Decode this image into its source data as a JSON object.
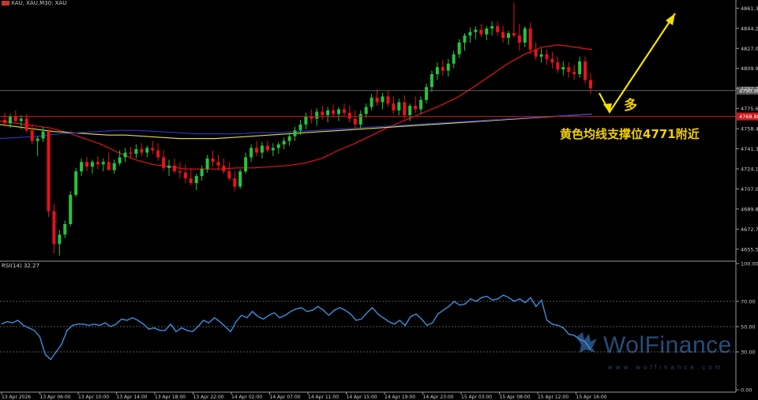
{
  "window": {
    "symbol_title": "XAU, XAU,M30: XAU",
    "rsi_title": "RSI(14) 32.27"
  },
  "annotations": {
    "support_text": "黄色均线支撑位4771附近",
    "long_label": "多"
  },
  "watermark": {
    "brand": "WolFinance",
    "url": "www.wolfinance.com"
  },
  "colors": {
    "background": "#000000",
    "bull": "#26c43c",
    "bear": "#e8131b",
    "ma_red": "#e8131b",
    "ma_yellow": "#e6d94a",
    "ma_blue": "#2a38c8",
    "rsi_line": "#3d8fe0",
    "arrow": "#f2e200",
    "level_line": "#d01818",
    "annotation": "#f2d000"
  },
  "chart_data": [
    {
      "type": "candlestick",
      "timeframe": "M30",
      "yaxis_labels": [
        "4861.35",
        "4844.20",
        "4827.05",
        "4809.90",
        "4792.75",
        "4775.60",
        "4758.45",
        "4741.30",
        "4724.15",
        "4707.00",
        "4689.85",
        "4672.70",
        "4655.55"
      ],
      "ylim": [
        4646,
        4867
      ],
      "current_price_label": "4790.98",
      "horizontal_level_label": "4768.88",
      "xaxis_labels": [
        "13 Apr 2026",
        "13 Apr 06:00",
        "13 Apr 10:00",
        "13 Apr 14:00",
        "13 Apr 18:00",
        "13 Apr 22:00",
        "14 Apr 02:00",
        "14 Apr 07:00",
        "14 Apr 11:00",
        "14 Apr 15:00",
        "14 Apr 19:00",
        "14 Apr 23:00",
        "15 Apr 03:00",
        "15 Apr 08:00",
        "15 Apr 12:00",
        "15 Apr 16:00"
      ],
      "candles_ohlc": [
        [
          4766,
          4772,
          4760,
          4763
        ],
        [
          4763,
          4771,
          4759,
          4769
        ],
        [
          4769,
          4774,
          4764,
          4765
        ],
        [
          4765,
          4770,
          4758,
          4767
        ],
        [
          4767,
          4771,
          4755,
          4757
        ],
        [
          4757,
          4762,
          4745,
          4748
        ],
        [
          4748,
          4752,
          4735,
          4750
        ],
        [
          4750,
          4760,
          4747,
          4756
        ],
        [
          4756,
          4758,
          4683,
          4688
        ],
        [
          4688,
          4694,
          4652,
          4660
        ],
        [
          4660,
          4672,
          4650,
          4668
        ],
        [
          4668,
          4680,
          4665,
          4677
        ],
        [
          4677,
          4705,
          4675,
          4702
        ],
        [
          4702,
          4725,
          4700,
          4722
        ],
        [
          4722,
          4733,
          4718,
          4730
        ],
        [
          4730,
          4734,
          4722,
          4726
        ],
        [
          4726,
          4732,
          4720,
          4730
        ],
        [
          4730,
          4735,
          4724,
          4728
        ],
        [
          4728,
          4733,
          4722,
          4730
        ],
        [
          4730,
          4738,
          4725,
          4723
        ],
        [
          4723,
          4732,
          4720,
          4729
        ],
        [
          4729,
          4740,
          4727,
          4734
        ],
        [
          4734,
          4742,
          4730,
          4738
        ],
        [
          4738,
          4743,
          4733,
          4737
        ],
        [
          4737,
          4745,
          4733,
          4741
        ],
        [
          4741,
          4746,
          4735,
          4738
        ],
        [
          4738,
          4744,
          4734,
          4742
        ],
        [
          4742,
          4748,
          4737,
          4740
        ],
        [
          4740,
          4746,
          4731,
          4734
        ],
        [
          4734,
          4740,
          4722,
          4725
        ],
        [
          4725,
          4732,
          4718,
          4727
        ],
        [
          4727,
          4733,
          4720,
          4722
        ],
        [
          4722,
          4730,
          4716,
          4721
        ],
        [
          4721,
          4728,
          4712,
          4716
        ],
        [
          4716,
          4725,
          4710,
          4712
        ],
        [
          4712,
          4720,
          4706,
          4718
        ],
        [
          4718,
          4727,
          4714,
          4724
        ],
        [
          4724,
          4736,
          4721,
          4733
        ],
        [
          4733,
          4740,
          4726,
          4730
        ],
        [
          4730,
          4736,
          4723,
          4727
        ],
        [
          4727,
          4733,
          4720,
          4722
        ],
        [
          4722,
          4730,
          4714,
          4716
        ],
        [
          4716,
          4722,
          4705,
          4709
        ],
        [
          4709,
          4724,
          4707,
          4722
        ],
        [
          4722,
          4738,
          4720,
          4734
        ],
        [
          4734,
          4745,
          4730,
          4742
        ],
        [
          4742,
          4748,
          4735,
          4738
        ],
        [
          4738,
          4747,
          4733,
          4744
        ],
        [
          4744,
          4748,
          4738,
          4740
        ],
        [
          4740,
          4746,
          4735,
          4742
        ],
        [
          4742,
          4747,
          4737,
          4745
        ],
        [
          4745,
          4751,
          4741,
          4748
        ],
        [
          4748,
          4755,
          4744,
          4752
        ],
        [
          4752,
          4760,
          4748,
          4757
        ],
        [
          4757,
          4766,
          4753,
          4762
        ],
        [
          4762,
          4772,
          4758,
          4769
        ],
        [
          4769,
          4775,
          4763,
          4767
        ],
        [
          4767,
          4776,
          4761,
          4773
        ],
        [
          4773,
          4778,
          4766,
          4770
        ],
        [
          4770,
          4777,
          4764,
          4774
        ],
        [
          4774,
          4779,
          4768,
          4771
        ],
        [
          4771,
          4777,
          4765,
          4775
        ],
        [
          4775,
          4780,
          4769,
          4772
        ],
        [
          4772,
          4778,
          4764,
          4767
        ],
        [
          4767,
          4774,
          4759,
          4762
        ],
        [
          4762,
          4774,
          4759,
          4771
        ],
        [
          4771,
          4780,
          4768,
          4777
        ],
        [
          4777,
          4788,
          4774,
          4785
        ],
        [
          4785,
          4792,
          4778,
          4781
        ],
        [
          4781,
          4789,
          4775,
          4786
        ],
        [
          4786,
          4791,
          4777,
          4780
        ],
        [
          4780,
          4786,
          4771,
          4774
        ],
        [
          4774,
          4784,
          4770,
          4781
        ],
        [
          4781,
          4787,
          4767,
          4770
        ],
        [
          4770,
          4780,
          4765,
          4778
        ],
        [
          4778,
          4786,
          4772,
          4775
        ],
        [
          4775,
          4786,
          4771,
          4783
        ],
        [
          4783,
          4797,
          4780,
          4794
        ],
        [
          4794,
          4808,
          4790,
          4805
        ],
        [
          4805,
          4815,
          4800,
          4811
        ],
        [
          4811,
          4817,
          4804,
          4808
        ],
        [
          4808,
          4818,
          4803,
          4814
        ],
        [
          4814,
          4825,
          4810,
          4822
        ],
        [
          4822,
          4835,
          4819,
          4832
        ],
        [
          4832,
          4840,
          4825,
          4838
        ],
        [
          4838,
          4845,
          4832,
          4841
        ],
        [
          4841,
          4846,
          4835,
          4843
        ],
        [
          4843,
          4848,
          4837,
          4839
        ],
        [
          4839,
          4846,
          4834,
          4844
        ],
        [
          4844,
          4850,
          4838,
          4846
        ],
        [
          4846,
          4850,
          4838,
          4841
        ],
        [
          4841,
          4846,
          4832,
          4836
        ],
        [
          4836,
          4842,
          4830,
          4840
        ],
        [
          4840,
          4866,
          4836,
          4838
        ],
        [
          4838,
          4848,
          4825,
          4832
        ],
        [
          4832,
          4846,
          4828,
          4844
        ],
        [
          4844,
          4849,
          4822,
          4826
        ],
        [
          4826,
          4832,
          4817,
          4820
        ],
        [
          4820,
          4827,
          4815,
          4822
        ],
        [
          4822,
          4826,
          4813,
          4818
        ],
        [
          4818,
          4824,
          4810,
          4815
        ],
        [
          4815,
          4820,
          4806,
          4809
        ],
        [
          4809,
          4816,
          4804,
          4811
        ],
        [
          4811,
          4815,
          4802,
          4807
        ],
        [
          4807,
          4813,
          4800,
          4805
        ],
        [
          4805,
          4820,
          4802,
          4816
        ],
        [
          4816,
          4820,
          4797,
          4800
        ],
        [
          4800,
          4806,
          4788,
          4793
        ]
      ],
      "moving_averages": [
        {
          "color": "red",
          "values": [
            4765,
            4763,
            4761,
            4759,
            4755,
            4750,
            4745,
            4738,
            4732,
            4728,
            4726,
            4724,
            4724,
            4724,
            4725,
            4725,
            4726,
            4727,
            4729,
            4733,
            4740,
            4746,
            4753,
            4760,
            4766,
            4772,
            4778,
            4785,
            4794,
            4804,
            4814,
            4822,
            4828,
            4830,
            4828,
            4826
          ]
        },
        {
          "color": "yellow",
          "values": [
            4762,
            4760,
            4758,
            4756,
            4755,
            4754,
            4753,
            4753,
            4752,
            4751,
            4750,
            4750,
            4750,
            4751,
            4752,
            4753,
            4754,
            4755,
            4756,
            4757,
            4758,
            4759,
            4760,
            4761,
            4762,
            4763,
            4764,
            4765,
            4766,
            4767,
            4768,
            4769,
            4770,
            4771
          ]
        },
        {
          "color": "blue",
          "values": [
            4750,
            4751,
            4752,
            4754,
            4755,
            4756,
            4757,
            4757,
            4756,
            4755,
            4754,
            4754,
            4754,
            4755,
            4755,
            4756,
            4757,
            4758,
            4759,
            4760,
            4761,
            4762,
            4763,
            4764,
            4765,
            4766,
            4767,
            4768,
            4769,
            4770,
            4771
          ]
        }
      ]
    },
    {
      "type": "line",
      "title": "RSI(14) 32.27",
      "yaxis_labels": [
        "100.00",
        "70.00",
        "50.00",
        "30.00",
        "0.00"
      ],
      "ylim": [
        0,
        100
      ],
      "levels": [
        70,
        50,
        30
      ],
      "series": [
        {
          "name": "RSI(14)",
          "values": [
            52,
            54,
            53,
            55,
            51,
            49,
            47,
            42,
            28,
            24,
            30,
            36,
            47,
            51,
            52,
            52,
            51,
            52,
            51,
            53,
            50,
            52,
            56,
            55,
            57,
            55,
            52,
            48,
            49,
            47,
            47,
            52,
            46,
            49,
            47,
            46,
            50,
            55,
            53,
            57,
            54,
            50,
            46,
            54,
            59,
            57,
            62,
            58,
            56,
            59,
            61,
            57,
            59,
            62,
            64,
            65,
            62,
            63,
            66,
            63,
            59,
            63,
            65,
            63,
            60,
            55,
            56,
            61,
            65,
            60,
            57,
            54,
            52,
            55,
            51,
            58,
            60,
            56,
            51,
            53,
            60,
            63,
            66,
            70,
            67,
            68,
            72,
            70,
            73,
            74,
            71,
            72,
            75,
            73,
            70,
            72,
            69,
            73,
            66,
            71,
            55,
            52,
            51,
            49,
            44,
            43,
            40,
            38,
            32
          ]
        }
      ]
    }
  ]
}
